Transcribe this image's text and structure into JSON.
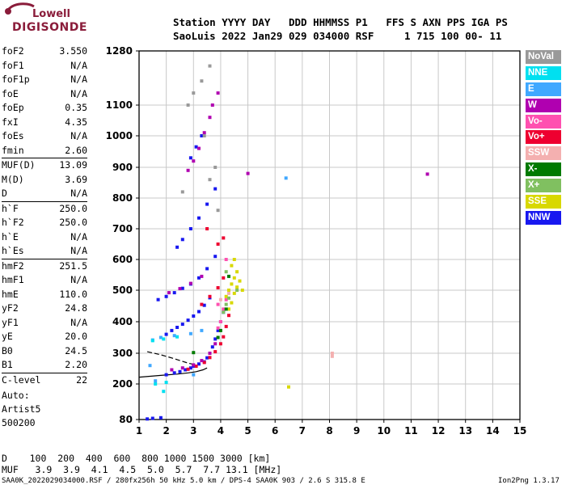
{
  "logo": {
    "line1": "Lowell",
    "line2": "DIGISONDE"
  },
  "header": {
    "line1": "Station YYYY DAY   DDD HHMMSS P1   FFS S AXN PPS IGA PS",
    "line2": "SaoLuis 2022 Jan29 029 034000 RSF     1 715 100 00- 11"
  },
  "params": [
    {
      "name": "foF2",
      "value": "3.550"
    },
    {
      "name": "foF1",
      "value": "N/A"
    },
    {
      "name": "foF1p",
      "value": "N/A"
    },
    {
      "name": "foE",
      "value": "N/A"
    },
    {
      "name": "foEp",
      "value": "0.35"
    },
    {
      "name": "fxI",
      "value": "4.35"
    },
    {
      "name": "foEs",
      "value": "N/A"
    },
    {
      "name": "fmin",
      "value": "2.60"
    },
    {
      "name": "MUF(D)",
      "value": "13.09"
    },
    {
      "name": "M(D)",
      "value": "3.69"
    },
    {
      "name": "D",
      "value": "N/A"
    },
    {
      "name": "h`F",
      "value": "250.0"
    },
    {
      "name": "h`F2",
      "value": "250.0"
    },
    {
      "name": "h`E",
      "value": "N/A"
    },
    {
      "name": "h`Es",
      "value": "N/A"
    },
    {
      "name": "hmF2",
      "value": "251.5"
    },
    {
      "name": "hmF1",
      "value": "N/A"
    },
    {
      "name": "hmE",
      "value": "110.0"
    },
    {
      "name": "yF2",
      "value": "24.8"
    },
    {
      "name": "yF1",
      "value": "N/A"
    },
    {
      "name": "yE",
      "value": "20.0"
    },
    {
      "name": "B0",
      "value": "24.5"
    },
    {
      "name": "B1",
      "value": "2.20"
    },
    {
      "name": "C-level",
      "value": "22"
    }
  ],
  "auto": {
    "line1": "Auto:",
    "line2": "Artist5",
    "line3": "500200"
  },
  "legend": [
    {
      "label": "NoVal",
      "color": "#999999"
    },
    {
      "label": "NNE",
      "color": "#00e0f0"
    },
    {
      "label": "E",
      "color": "#40a8ff"
    },
    {
      "label": "W",
      "color": "#b000b0"
    },
    {
      "label": "Vo-",
      "color": "#ff50b0"
    },
    {
      "label": "Vo+",
      "color": "#ee0030"
    },
    {
      "label": "SSW",
      "color": "#f4b0b0"
    },
    {
      "label": "X-",
      "color": "#007a00"
    },
    {
      "label": "X+",
      "color": "#80c060"
    },
    {
      "label": "SSE",
      "color": "#d8d800"
    },
    {
      "label": "NNW",
      "color": "#1818f0"
    }
  ],
  "footer": {
    "line1": "D    100  200  400  600  800 1000 1500 3000 [km]",
    "line2": "MUF   3.9  3.9  4.1  4.5  5.0  5.7  7.7 13.1 [MHz]",
    "left": "SAA0K_2022029034000.RSF / 280fx256h 50 kHz 5.0 km / DPS-4 SAA0K 903 / 2.6 S 315.8 E",
    "right": "Ion2Png 1.3.17"
  },
  "chart_data": {
    "type": "scatter",
    "title": "",
    "xlabel": "",
    "ylabel": "",
    "xlim": [
      1,
      15
    ],
    "ylim": [
      80,
      1280
    ],
    "xticks": [
      "1",
      "2",
      "3",
      "4",
      "5",
      "6",
      "7",
      "8",
      "9",
      "10",
      "11",
      "12",
      "13",
      "14",
      "15"
    ],
    "yticks": [
      "80",
      "200",
      "300",
      "400",
      "500",
      "600",
      "700",
      "800",
      "900",
      "1000",
      "1100",
      "1280"
    ],
    "grid": true,
    "series": [
      {
        "name": "NNW",
        "color": "#1818f0",
        "points": [
          [
            1.3,
            82
          ],
          [
            1.5,
            84
          ],
          [
            1.8,
            86
          ],
          [
            2.0,
            230
          ],
          [
            2.3,
            236
          ],
          [
            2.5,
            240
          ],
          [
            2.7,
            246
          ],
          [
            2.9,
            252
          ],
          [
            3.0,
            258
          ],
          [
            3.2,
            265
          ],
          [
            3.4,
            272
          ],
          [
            3.5,
            285
          ],
          [
            3.6,
            300
          ],
          [
            3.7,
            320
          ],
          [
            3.8,
            345
          ],
          [
            3.9,
            372
          ],
          [
            4.0,
            400
          ],
          [
            4.1,
            430
          ],
          [
            2.0,
            360
          ],
          [
            2.2,
            372
          ],
          [
            2.4,
            382
          ],
          [
            2.6,
            392
          ],
          [
            2.8,
            405
          ],
          [
            3.0,
            418
          ],
          [
            3.2,
            432
          ],
          [
            3.4,
            452
          ],
          [
            3.6,
            476
          ],
          [
            1.7,
            470
          ],
          [
            2.0,
            480
          ],
          [
            2.3,
            492
          ],
          [
            2.6,
            506
          ],
          [
            2.9,
            520
          ],
          [
            3.2,
            540
          ],
          [
            3.5,
            570
          ],
          [
            3.8,
            610
          ],
          [
            2.4,
            640
          ],
          [
            2.6,
            665
          ],
          [
            2.9,
            700
          ],
          [
            3.2,
            735
          ],
          [
            3.5,
            780
          ],
          [
            3.8,
            830
          ],
          [
            2.9,
            930
          ],
          [
            3.1,
            965
          ],
          [
            3.3,
            1000
          ]
        ]
      },
      {
        "name": "Vo+",
        "color": "#ee0030",
        "points": [
          [
            2.8,
            248
          ],
          [
            3.1,
            258
          ],
          [
            3.4,
            270
          ],
          [
            3.6,
            286
          ],
          [
            3.8,
            305
          ],
          [
            4.0,
            330
          ],
          [
            4.1,
            352
          ],
          [
            4.2,
            385
          ],
          [
            4.3,
            420
          ],
          [
            3.3,
            455
          ],
          [
            3.6,
            480
          ],
          [
            3.9,
            508
          ],
          [
            4.1,
            540
          ],
          [
            3.9,
            650
          ],
          [
            4.1,
            670
          ],
          [
            3.5,
            700
          ]
        ]
      },
      {
        "name": "W",
        "color": "#b000b0",
        "points": [
          [
            2.2,
            246
          ],
          [
            2.6,
            252
          ],
          [
            3.0,
            262
          ],
          [
            3.3,
            276
          ],
          [
            3.6,
            300
          ],
          [
            3.8,
            330
          ],
          [
            2.1,
            492
          ],
          [
            2.5,
            505
          ],
          [
            2.9,
            522
          ],
          [
            3.3,
            545
          ],
          [
            2.8,
            890
          ],
          [
            3.0,
            920
          ],
          [
            3.2,
            960
          ],
          [
            3.4,
            1010
          ],
          [
            3.6,
            1060
          ],
          [
            3.7,
            1100
          ],
          [
            3.9,
            1140
          ],
          [
            5.0,
            880
          ],
          [
            11.6,
            878
          ]
        ]
      },
      {
        "name": "Vo-",
        "color": "#ff50b0",
        "points": [
          [
            3.9,
            380
          ],
          [
            4.0,
            400
          ],
          [
            4.1,
            440
          ],
          [
            4.2,
            470
          ],
          [
            4.2,
            600
          ],
          [
            3.9,
            455
          ]
        ]
      },
      {
        "name": "SSE",
        "color": "#d8d800",
        "points": [
          [
            4.2,
            480
          ],
          [
            4.3,
            500
          ],
          [
            4.4,
            520
          ],
          [
            4.5,
            540
          ],
          [
            4.6,
            560
          ],
          [
            4.4,
            460
          ],
          [
            4.5,
            490
          ],
          [
            4.6,
            510
          ],
          [
            4.7,
            530
          ],
          [
            4.4,
            580
          ],
          [
            4.5,
            600
          ],
          [
            4.8,
            500
          ],
          [
            4.3,
            440
          ],
          [
            6.5,
            190
          ]
        ]
      },
      {
        "name": "X+",
        "color": "#80c060",
        "points": [
          [
            4.1,
            430
          ],
          [
            4.2,
            455
          ],
          [
            4.3,
            475
          ],
          [
            4.6,
            500
          ],
          [
            4.2,
            560
          ]
        ]
      },
      {
        "name": "X-",
        "color": "#007a00",
        "points": [
          [
            3.9,
            350
          ],
          [
            4.0,
            372
          ],
          [
            4.2,
            440
          ],
          [
            4.3,
            545
          ],
          [
            3.0,
            302
          ]
        ]
      },
      {
        "name": "E",
        "color": "#40a8ff",
        "points": [
          [
            1.5,
            342
          ],
          [
            1.8,
            350
          ],
          [
            2.3,
            356
          ],
          [
            2.9,
            362
          ],
          [
            3.3,
            372
          ],
          [
            1.4,
            260
          ],
          [
            1.6,
            210
          ],
          [
            6.4,
            865
          ],
          [
            3.0,
            230
          ]
        ]
      },
      {
        "name": "NNE",
        "color": "#00e0f0",
        "points": [
          [
            1.5,
            340
          ],
          [
            1.9,
            345
          ],
          [
            2.4,
            352
          ],
          [
            1.6,
            200
          ],
          [
            2.0,
            205
          ],
          [
            1.9,
            175
          ]
        ]
      },
      {
        "name": "SSW",
        "color": "#f4b0b0",
        "points": [
          [
            8.1,
            300
          ],
          [
            8.1,
            290
          ],
          [
            4.0,
            470
          ],
          [
            4.3,
            490
          ]
        ]
      },
      {
        "name": "NoVal",
        "color": "#999999",
        "points": [
          [
            2.8,
            1100
          ],
          [
            3.0,
            1140
          ],
          [
            3.3,
            1180
          ],
          [
            3.6,
            1230
          ],
          [
            3.4,
            1000
          ],
          [
            3.8,
            900
          ],
          [
            2.6,
            820
          ],
          [
            3.9,
            760
          ],
          [
            3.6,
            860
          ]
        ]
      }
    ],
    "profile_curves": [
      [
        [
          1.0,
          222
        ],
        [
          1.8,
          228
        ],
        [
          2.4,
          232
        ],
        [
          2.8,
          236
        ],
        [
          3.1,
          240
        ],
        [
          3.35,
          246
        ],
        [
          3.5,
          252
        ]
      ],
      [
        [
          1.3,
          305
        ],
        [
          1.8,
          295
        ],
        [
          2.3,
          282
        ],
        [
          2.8,
          268
        ],
        [
          3.1,
          262
        ]
      ]
    ]
  }
}
